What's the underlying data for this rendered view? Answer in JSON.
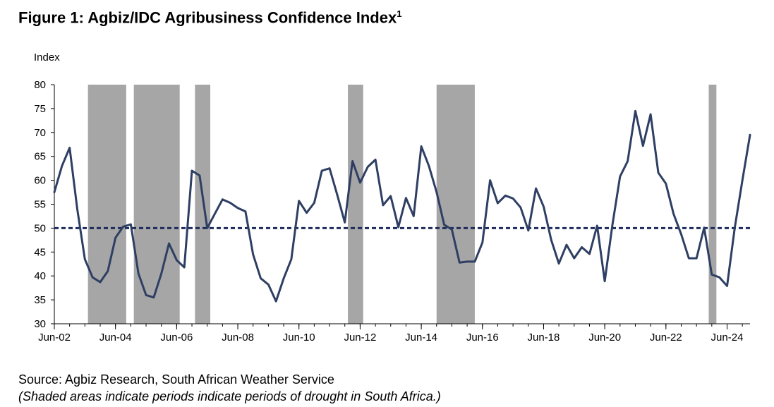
{
  "title": "Figure 1: Agbiz/IDC Agribusiness Confidence Index",
  "title_superscript": "1",
  "source": "Source: Agbiz Research, South African Weather Service",
  "note": "(Shaded areas indicate periods indicate periods of drought in South Africa.)",
  "chart_data": {
    "type": "line",
    "ylabel": "Index",
    "ylim": [
      30,
      80
    ],
    "yticks": [
      30,
      35,
      40,
      45,
      50,
      55,
      60,
      65,
      70,
      75,
      80
    ],
    "xlim": [
      2002.25,
      2025.0
    ],
    "xticks": [
      {
        "label": "Jun-02",
        "x": 2002.25
      },
      {
        "label": "Jun-04",
        "x": 2004.25
      },
      {
        "label": "Jun-06",
        "x": 2006.25
      },
      {
        "label": "Jun-08",
        "x": 2008.25
      },
      {
        "label": "Jun-10",
        "x": 2010.25
      },
      {
        "label": "Jun-12",
        "x": 2012.25
      },
      {
        "label": "Jun-14",
        "x": 2014.25
      },
      {
        "label": "Jun-16",
        "x": 2016.25
      },
      {
        "label": "Jun-18",
        "x": 2018.25
      },
      {
        "label": "Jun-20",
        "x": 2020.25
      },
      {
        "label": "Jun-22",
        "x": 2022.25
      },
      {
        "label": "Jun-24",
        "x": 2024.25
      }
    ],
    "reference_line": {
      "y": 50,
      "style": "dashed",
      "color": "#1f2d5c"
    },
    "line_color": "#2e3f63",
    "shade_color": "#a6a6a6",
    "drought_periods": [
      [
        2003.35,
        2004.6
      ],
      [
        2004.85,
        2006.35
      ],
      [
        2006.85,
        2007.35
      ],
      [
        2011.85,
        2012.35
      ],
      [
        2014.75,
        2016.0
      ],
      [
        2023.65,
        2023.9
      ]
    ],
    "series": [
      {
        "points": [
          [
            2002.25,
            57.5
          ],
          [
            2002.5,
            63
          ],
          [
            2002.75,
            66.8
          ],
          [
            2003.0,
            54
          ],
          [
            2003.25,
            43.5
          ],
          [
            2003.5,
            39.7
          ],
          [
            2003.75,
            38.7
          ],
          [
            2004.0,
            41
          ],
          [
            2004.25,
            48
          ],
          [
            2004.5,
            50.3
          ],
          [
            2004.75,
            50.8
          ],
          [
            2005.0,
            40.5
          ],
          [
            2005.25,
            36
          ],
          [
            2005.5,
            35.5
          ],
          [
            2005.75,
            40.5
          ],
          [
            2006.0,
            46.8
          ],
          [
            2006.25,
            43.3
          ],
          [
            2006.5,
            41.8
          ],
          [
            2006.75,
            62
          ],
          [
            2007.0,
            61
          ],
          [
            2007.25,
            50
          ],
          [
            2007.5,
            53
          ],
          [
            2007.75,
            56
          ],
          [
            2008.0,
            55.3
          ],
          [
            2008.25,
            54.2
          ],
          [
            2008.5,
            53.5
          ],
          [
            2008.75,
            44.5
          ],
          [
            2009.0,
            39.5
          ],
          [
            2009.25,
            38.2
          ],
          [
            2009.5,
            34.7
          ],
          [
            2009.75,
            39.5
          ],
          [
            2010.0,
            43.5
          ],
          [
            2010.25,
            55.7
          ],
          [
            2010.5,
            53.2
          ],
          [
            2010.75,
            55.3
          ],
          [
            2011.0,
            62
          ],
          [
            2011.25,
            62.5
          ],
          [
            2011.5,
            57
          ],
          [
            2011.75,
            51.2
          ],
          [
            2012.0,
            64
          ],
          [
            2012.25,
            59.5
          ],
          [
            2012.5,
            62.8
          ],
          [
            2012.75,
            64.3
          ],
          [
            2013.0,
            54.8
          ],
          [
            2013.25,
            56.7
          ],
          [
            2013.5,
            50.2
          ],
          [
            2013.75,
            56.3
          ],
          [
            2014.0,
            52.5
          ],
          [
            2014.25,
            67.1
          ],
          [
            2014.5,
            63
          ],
          [
            2014.75,
            57.5
          ],
          [
            2015.0,
            50.7
          ],
          [
            2015.25,
            49.7
          ],
          [
            2015.5,
            42.8
          ],
          [
            2015.75,
            43
          ],
          [
            2016.0,
            43
          ],
          [
            2016.25,
            47
          ],
          [
            2016.5,
            60
          ],
          [
            2016.75,
            55.2
          ],
          [
            2017.0,
            56.8
          ],
          [
            2017.25,
            56.2
          ],
          [
            2017.5,
            54.3
          ],
          [
            2017.75,
            49.5
          ],
          [
            2018.0,
            58.3
          ],
          [
            2018.25,
            54.5
          ],
          [
            2018.5,
            47.5
          ],
          [
            2018.75,
            42.6
          ],
          [
            2019.0,
            46.5
          ],
          [
            2019.25,
            43.7
          ],
          [
            2019.5,
            46
          ],
          [
            2019.75,
            44.6
          ],
          [
            2020.0,
            50.5
          ],
          [
            2020.25,
            38.9
          ],
          [
            2020.5,
            50.7
          ],
          [
            2020.75,
            60.8
          ],
          [
            2021.0,
            64
          ],
          [
            2021.25,
            74.5
          ],
          [
            2021.5,
            67.2
          ],
          [
            2021.75,
            73.8
          ],
          [
            2022.0,
            61.6
          ],
          [
            2022.25,
            59.3
          ],
          [
            2022.5,
            53
          ],
          [
            2022.75,
            48.7
          ],
          [
            2023.0,
            43.7
          ],
          [
            2023.25,
            43.7
          ],
          [
            2023.5,
            50.1
          ],
          [
            2023.75,
            40.3
          ],
          [
            2024.0,
            39.7
          ],
          [
            2024.25,
            37.9
          ],
          [
            2024.5,
            50
          ],
          [
            2024.75,
            60
          ],
          [
            2025.0,
            69.5
          ]
        ]
      }
    ]
  }
}
